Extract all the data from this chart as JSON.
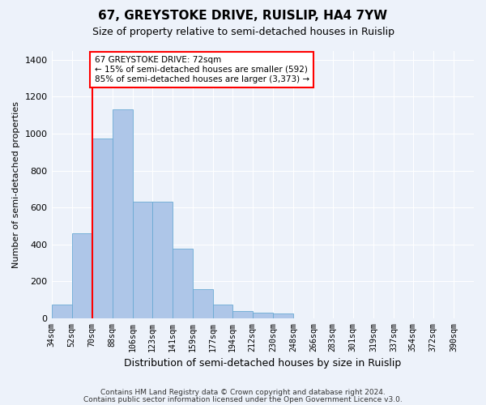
{
  "title1": "67, GREYSTOKE DRIVE, RUISLIP, HA4 7YW",
  "title2": "Size of property relative to semi-detached houses in Ruislip",
  "xlabel": "Distribution of semi-detached houses by size in Ruislip",
  "ylabel": "Number of semi-detached properties",
  "bin_labels": [
    "34sqm",
    "52sqm",
    "70sqm",
    "88sqm",
    "106sqm",
    "123sqm",
    "141sqm",
    "159sqm",
    "177sqm",
    "194sqm",
    "212sqm",
    "230sqm",
    "248sqm",
    "266sqm",
    "283sqm",
    "301sqm",
    "319sqm",
    "337sqm",
    "354sqm",
    "372sqm",
    "390sqm"
  ],
  "bar_heights": [
    75,
    460,
    975,
    1130,
    630,
    630,
    375,
    155,
    75,
    40,
    30,
    25,
    0,
    0,
    0,
    0,
    0,
    0,
    0,
    0,
    0
  ],
  "bar_color": "#aec6e8",
  "bar_edge_color": "#6aaad4",
  "vline_x": 70,
  "annotation_text": "67 GREYSTOKE DRIVE: 72sqm\n← 15% of semi-detached houses are smaller (592)\n85% of semi-detached houses are larger (3,373) →",
  "annotation_box_color": "white",
  "annotation_border_color": "red",
  "vline_color": "red",
  "ylim": [
    0,
    1450
  ],
  "yticks": [
    0,
    200,
    400,
    600,
    800,
    1000,
    1200,
    1400
  ],
  "footer1": "Contains HM Land Registry data © Crown copyright and database right 2024.",
  "footer2": "Contains public sector information licensed under the Open Government Licence v3.0.",
  "bg_color": "#edf2fa",
  "plot_bg_color": "#edf2fa"
}
